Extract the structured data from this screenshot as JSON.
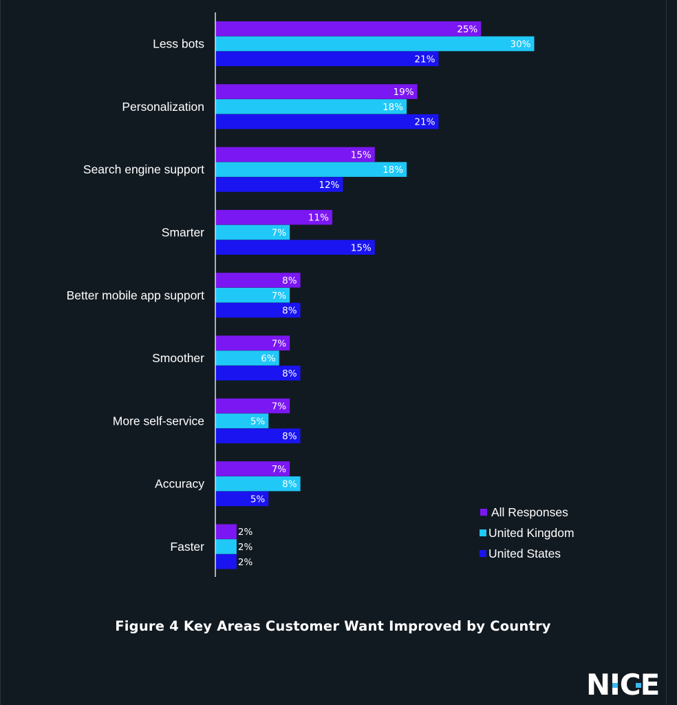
{
  "chart_data": {
    "type": "bar",
    "orientation": "horizontal",
    "categories": [
      "Less bots",
      "Personalization",
      "Search engine support",
      "Smarter",
      "Better mobile app support",
      "Smoother",
      "More self-service",
      "Accuracy",
      "Faster"
    ],
    "series": [
      {
        "name": "All Responses",
        "color": "#7b17f2",
        "values": [
          25,
          19,
          15,
          11,
          8,
          7,
          7,
          7,
          2
        ]
      },
      {
        "name": "United Kingdom",
        "color": "#20c8f8",
        "values": [
          30,
          18,
          18,
          7,
          7,
          6,
          5,
          8,
          2
        ]
      },
      {
        "name": "United States",
        "color": "#1a14f0",
        "values": [
          21,
          21,
          12,
          15,
          8,
          8,
          8,
          5,
          2
        ]
      }
    ],
    "value_suffix": "%",
    "xlim": [
      0,
      30
    ],
    "grid": false,
    "legend_position": "bottom-right"
  },
  "caption": "Figure 4 Key Areas Customer Want Improved by Country",
  "logo_text": "NICE",
  "colors": {
    "background": "#121a21",
    "logo_accent": "#3ab8f0"
  }
}
